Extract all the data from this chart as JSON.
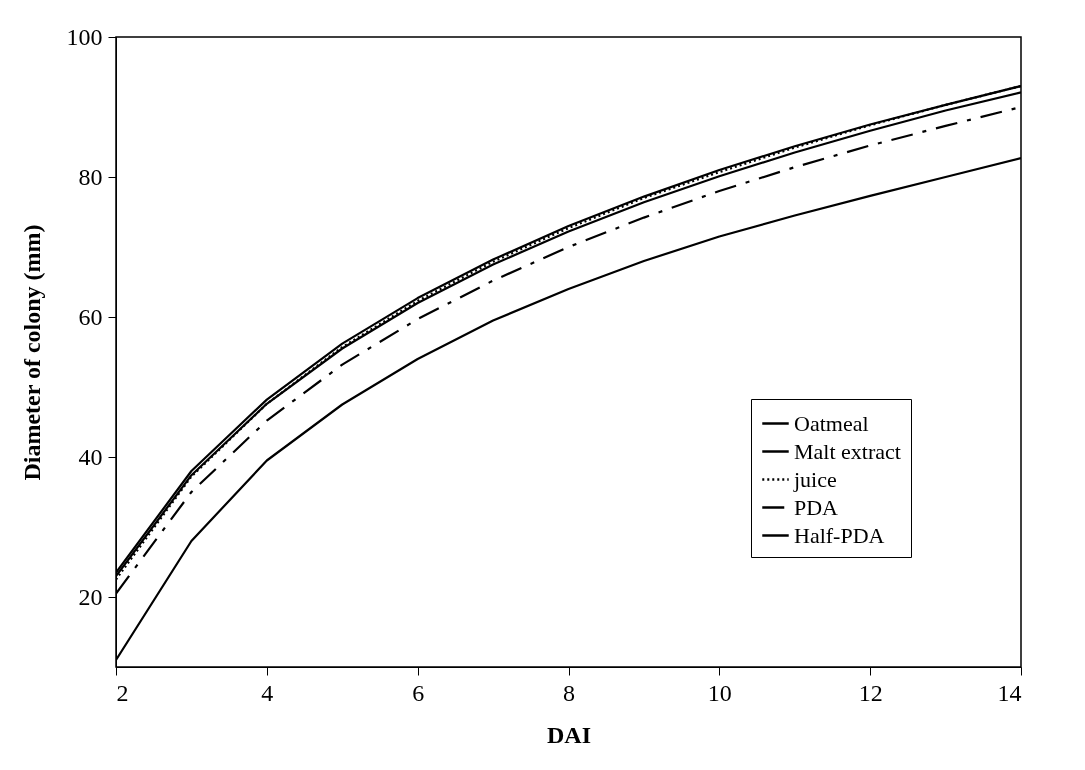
{
  "chart_data": {
    "type": "line",
    "xlabel": "DAI",
    "ylabel": "Diameter of colony (mm)",
    "x": [
      2,
      3,
      4,
      5,
      6,
      7,
      8,
      9,
      10,
      11,
      12,
      13,
      14
    ],
    "xlim": [
      2,
      14
    ],
    "xticks": [
      2,
      4,
      6,
      8,
      10,
      12,
      14
    ],
    "ylim": [
      10,
      100
    ],
    "yticks": [
      20,
      40,
      60,
      80,
      100
    ],
    "grid": false,
    "legend": "bottom right",
    "series": [
      {
        "name": "Oatmeal",
        "color": "#000000",
        "line_style": "solid",
        "values": [
          23.5,
          38.0,
          48.2,
          56.2,
          62.7,
          68.2,
          73.0,
          77.2,
          81.0,
          84.4,
          87.5,
          90.3,
          93.0
        ]
      },
      {
        "name": "Malt extract",
        "color": "#000000",
        "line_style": "solid",
        "values": [
          11,
          28,
          39.5,
          47.5,
          54,
          59.5,
          64,
          68,
          71.5,
          74.5,
          77.3,
          80,
          82.7
        ]
      },
      {
        "name": "juice",
        "color": "#000000",
        "line_style": "dotted",
        "values": [
          22.5,
          37.2,
          47.6,
          55.7,
          62.3,
          67.9,
          72.7,
          77.0,
          80.7,
          84.2,
          87.4,
          90.3,
          93.0
        ]
      },
      {
        "name": "PDA",
        "color": "#000000",
        "line_style": "dashed",
        "values": [
          20.5,
          35.0,
          45.2,
          53.2,
          59.7,
          65.2,
          70.0,
          74.2,
          78.0,
          81.4,
          84.5,
          87.3,
          90.0
        ]
      },
      {
        "name": "Half-PDA",
        "color": "#000000",
        "line_style": "solid",
        "values": [
          23.0,
          37.4,
          47.6,
          55.5,
          62.0,
          67.5,
          72.2,
          76.4,
          80.1,
          83.5,
          86.6,
          89.5,
          92.1
        ]
      }
    ]
  }
}
